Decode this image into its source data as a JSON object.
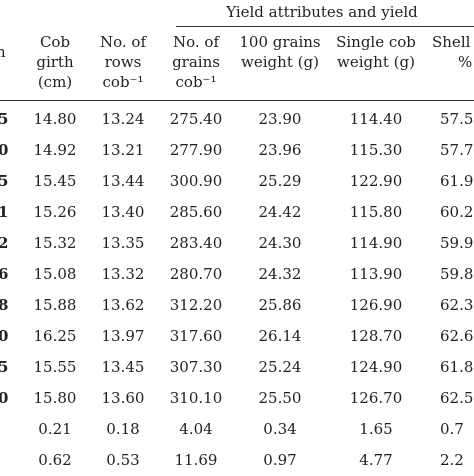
{
  "title": "Yield attributes and yield",
  "left_header_fragment": "n",
  "headers": [
    {
      "lines": [
        "Cob",
        "girth",
        "(cm)"
      ]
    },
    {
      "lines": [
        "No. of",
        "rows",
        "cob⁻¹"
      ]
    },
    {
      "lines": [
        "No. of",
        "grains",
        "cob⁻¹"
      ]
    },
    {
      "lines": [
        "100 grains",
        "weight (g)"
      ]
    },
    {
      "lines": [
        "Single cob",
        "weight (g)"
      ]
    },
    {
      "lines": [
        "Shell",
        "%"
      ]
    }
  ],
  "rows": [
    {
      "lead": "5",
      "cells": [
        "14.80",
        "13.24",
        "275.40",
        "23.90",
        "114.40",
        "57.5"
      ]
    },
    {
      "lead": "0",
      "cells": [
        "14.92",
        "13.21",
        "277.90",
        "23.96",
        "115.30",
        "57.7"
      ]
    },
    {
      "lead": "5",
      "cells": [
        "15.45",
        "13.44",
        "300.90",
        "25.29",
        "122.90",
        "61.9"
      ]
    },
    {
      "lead": "1",
      "cells": [
        "15.26",
        "13.40",
        "285.60",
        "24.42",
        "115.80",
        "60.2"
      ]
    },
    {
      "lead": "2",
      "cells": [
        "15.32",
        "13.35",
        "283.40",
        "24.30",
        "114.90",
        "59.9"
      ]
    },
    {
      "lead": "6",
      "cells": [
        "15.08",
        "13.32",
        "280.70",
        "24.32",
        "113.90",
        "59.8"
      ]
    },
    {
      "lead": "8",
      "cells": [
        "15.88",
        "13.62",
        "312.20",
        "25.86",
        "126.90",
        "62.3"
      ]
    },
    {
      "lead": "0",
      "cells": [
        "16.25",
        "13.97",
        "317.60",
        "26.14",
        "128.70",
        "62.6"
      ]
    },
    {
      "lead": "5",
      "cells": [
        "15.55",
        "13.45",
        "307.30",
        "25.24",
        "124.90",
        "61.8"
      ]
    },
    {
      "lead": "0",
      "cells": [
        "15.80",
        "13.60",
        "310.10",
        "25.50",
        "126.70",
        "62.5"
      ]
    },
    {
      "lead": "",
      "cells": [
        "0.21",
        "0.18",
        "4.04",
        "0.34",
        "1.65",
        "0.7"
      ]
    },
    {
      "lead": "",
      "cells": [
        "0.62",
        "0.53",
        "11.69",
        "0.97",
        "4.77",
        "2.2"
      ]
    }
  ]
}
